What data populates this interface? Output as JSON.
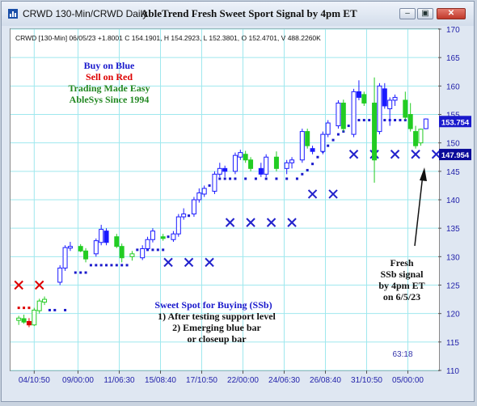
{
  "window": {
    "title": "CRWD 130-Min/CRWD Daily",
    "headline": "AbleTrend Fresh Sweet Sport Signal by 4pm ET",
    "controls": [
      "minimize",
      "restore",
      "close"
    ]
  },
  "colors": {
    "blue_bar": "#1a1aff",
    "green_bar": "#22cc22",
    "red_dot": "#dd0000",
    "support_dot": "#1a1acc",
    "support_x": "#2222cc",
    "grid": "#9fe8ee",
    "axis_text": "#2222aa",
    "label_bg": "#1a1acc"
  },
  "chart_data": {
    "type": "candlestick",
    "info_line": "CRWD [130-Min] 06/05/23 +1.8001 C 154.1901, H 154.2923, L 152.3801, O 152.4701, V 488.2260K",
    "ylim": [
      110,
      170
    ],
    "ytick_values": [
      110,
      115,
      120,
      125,
      130,
      135,
      140,
      145,
      150,
      155,
      160,
      165,
      170
    ],
    "x_tick_labels": [
      "04/10:50",
      "09/00:00",
      "11/06:30",
      "15/08:40",
      "17/10:50",
      "22/00:00",
      "24/06:30",
      "26/08:40",
      "31/10:50",
      "05/00:00"
    ],
    "x_tick_positions": [
      3,
      11.5,
      19.5,
      27.5,
      35.5,
      43.5,
      51.5,
      59.5,
      67.5,
      75.5
    ],
    "n_bars": 80,
    "price_labels": [
      {
        "text": "153.754",
        "value": 153.754,
        "style": "blue"
      },
      {
        "text": "147.954",
        "value": 147.954,
        "style": "blue-dark"
      }
    ],
    "bars": [
      {
        "i": 0,
        "o": 118.8,
        "h": 119.6,
        "l": 118.0,
        "c": 119.2,
        "color": "green"
      },
      {
        "i": 1,
        "o": 119.1,
        "h": 119.8,
        "l": 118.2,
        "c": 118.5,
        "color": "green"
      },
      {
        "i": 2,
        "o": 118.6,
        "h": 119.2,
        "l": 117.6,
        "c": 118.0,
        "color": "red"
      },
      {
        "i": 3,
        "o": 118.0,
        "h": 121.0,
        "l": 117.8,
        "c": 120.6,
        "color": "green"
      },
      {
        "i": 4,
        "o": 120.5,
        "h": 122.6,
        "l": 120.0,
        "c": 122.2,
        "color": "green"
      },
      {
        "i": 5,
        "o": 122.0,
        "h": 123.0,
        "l": 121.5,
        "c": 122.5,
        "color": "green"
      },
      {
        "i": 8,
        "o": 125.5,
        "h": 128.5,
        "l": 125.0,
        "c": 128.0,
        "color": "blue"
      },
      {
        "i": 9,
        "o": 128.0,
        "h": 132.0,
        "l": 127.5,
        "c": 131.6,
        "color": "blue"
      },
      {
        "i": 10,
        "o": 131.5,
        "h": 132.6,
        "l": 131.0,
        "c": 131.8,
        "color": "blue"
      },
      {
        "i": 12,
        "o": 131.8,
        "h": 132.2,
        "l": 130.8,
        "c": 131.0,
        "color": "green"
      },
      {
        "i": 13,
        "o": 131.0,
        "h": 131.5,
        "l": 129.0,
        "c": 129.6,
        "color": "green"
      },
      {
        "i": 15,
        "o": 130.5,
        "h": 133.2,
        "l": 130.0,
        "c": 132.8,
        "color": "blue"
      },
      {
        "i": 16,
        "o": 132.5,
        "h": 135.6,
        "l": 132.0,
        "c": 134.8,
        "color": "blue"
      },
      {
        "i": 17,
        "o": 134.5,
        "h": 135.0,
        "l": 132.0,
        "c": 132.5,
        "color": "blue"
      },
      {
        "i": 19,
        "o": 133.5,
        "h": 134.0,
        "l": 131.5,
        "c": 131.8,
        "color": "green"
      },
      {
        "i": 20,
        "o": 131.8,
        "h": 132.3,
        "l": 129.0,
        "c": 129.8,
        "color": "green"
      },
      {
        "i": 22,
        "o": 130.0,
        "h": 131.0,
        "l": 129.3,
        "c": 130.5,
        "color": "green"
      },
      {
        "i": 24,
        "o": 129.8,
        "h": 132.0,
        "l": 129.4,
        "c": 131.4,
        "color": "blue"
      },
      {
        "i": 25,
        "o": 131.4,
        "h": 133.5,
        "l": 131.0,
        "c": 133.0,
        "color": "blue"
      },
      {
        "i": 26,
        "o": 133.0,
        "h": 135.0,
        "l": 132.5,
        "c": 134.5,
        "color": "blue"
      },
      {
        "i": 28,
        "o": 133.5,
        "h": 134.0,
        "l": 132.8,
        "c": 133.2,
        "color": "green"
      },
      {
        "i": 30,
        "o": 133.0,
        "h": 134.5,
        "l": 132.6,
        "c": 134.0,
        "color": "blue"
      },
      {
        "i": 31,
        "o": 134.0,
        "h": 137.5,
        "l": 133.5,
        "c": 137.0,
        "color": "blue"
      },
      {
        "i": 32,
        "o": 137.0,
        "h": 138.5,
        "l": 136.5,
        "c": 137.5,
        "color": "blue"
      },
      {
        "i": 34,
        "o": 137.5,
        "h": 140.5,
        "l": 137.0,
        "c": 140.0,
        "color": "blue"
      },
      {
        "i": 35,
        "o": 140.0,
        "h": 142.0,
        "l": 139.5,
        "c": 141.2,
        "color": "blue"
      },
      {
        "i": 36,
        "o": 141.0,
        "h": 142.5,
        "l": 140.5,
        "c": 142.0,
        "color": "blue"
      },
      {
        "i": 38,
        "o": 141.5,
        "h": 145.0,
        "l": 141.0,
        "c": 144.5,
        "color": "blue"
      },
      {
        "i": 39,
        "o": 144.5,
        "h": 146.5,
        "l": 144.0,
        "c": 145.5,
        "color": "blue"
      },
      {
        "i": 40,
        "o": 145.5,
        "h": 146.0,
        "l": 144.0,
        "c": 145.0,
        "color": "blue"
      },
      {
        "i": 42,
        "o": 145.0,
        "h": 148.3,
        "l": 144.5,
        "c": 147.8,
        "color": "blue"
      },
      {
        "i": 43,
        "o": 147.5,
        "h": 148.8,
        "l": 147.0,
        "c": 148.3,
        "color": "blue"
      },
      {
        "i": 44,
        "o": 148.0,
        "h": 148.6,
        "l": 146.5,
        "c": 147.0,
        "color": "green"
      },
      {
        "i": 45,
        "o": 147.0,
        "h": 147.5,
        "l": 145.0,
        "c": 145.5,
        "color": "green"
      },
      {
        "i": 47,
        "o": 145.5,
        "h": 146.5,
        "l": 144.0,
        "c": 144.5,
        "color": "blue"
      },
      {
        "i": 48,
        "o": 144.5,
        "h": 148.0,
        "l": 144.0,
        "c": 147.5,
        "color": "blue"
      },
      {
        "i": 50,
        "o": 147.5,
        "h": 148.5,
        "l": 145.0,
        "c": 145.5,
        "color": "green"
      },
      {
        "i": 52,
        "o": 145.5,
        "h": 147.0,
        "l": 144.5,
        "c": 146.5,
        "color": "blue"
      },
      {
        "i": 53,
        "o": 146.5,
        "h": 147.5,
        "l": 145.5,
        "c": 147.0,
        "color": "blue"
      },
      {
        "i": 55,
        "o": 147.0,
        "h": 152.5,
        "l": 146.5,
        "c": 152.0,
        "color": "blue"
      },
      {
        "i": 56,
        "o": 152.0,
        "h": 152.5,
        "l": 149.0,
        "c": 149.5,
        "color": "green"
      },
      {
        "i": 57,
        "o": 149.0,
        "h": 149.5,
        "l": 148.0,
        "c": 148.5,
        "color": "blue"
      },
      {
        "i": 59,
        "o": 148.5,
        "h": 152.0,
        "l": 148.0,
        "c": 151.5,
        "color": "blue"
      },
      {
        "i": 60,
        "o": 151.5,
        "h": 154.0,
        "l": 151.0,
        "c": 153.5,
        "color": "blue"
      },
      {
        "i": 62,
        "o": 153.0,
        "h": 157.5,
        "l": 152.5,
        "c": 157.0,
        "color": "blue"
      },
      {
        "i": 63,
        "o": 157.0,
        "h": 157.6,
        "l": 152.0,
        "c": 152.5,
        "color": "green"
      },
      {
        "i": 65,
        "o": 151.5,
        "h": 159.5,
        "l": 151.0,
        "c": 159.0,
        "color": "blue"
      },
      {
        "i": 66,
        "o": 159.0,
        "h": 161.0,
        "l": 157.5,
        "c": 158.0,
        "color": "blue"
      },
      {
        "i": 67,
        "o": 158.5,
        "h": 159.0,
        "l": 156.5,
        "c": 157.0,
        "color": "green"
      },
      {
        "i": 69,
        "o": 157.0,
        "h": 161.5,
        "l": 143.0,
        "c": 147.0,
        "color": "green"
      },
      {
        "i": 70,
        "o": 152.0,
        "h": 160.5,
        "l": 151.5,
        "c": 160.0,
        "color": "blue"
      },
      {
        "i": 71,
        "o": 159.5,
        "h": 160.5,
        "l": 156.0,
        "c": 156.5,
        "color": "blue"
      },
      {
        "i": 72,
        "o": 156.0,
        "h": 158.0,
        "l": 153.0,
        "c": 157.5,
        "color": "blue"
      },
      {
        "i": 73,
        "o": 157.5,
        "h": 158.5,
        "l": 156.5,
        "c": 158.0,
        "color": "blue"
      },
      {
        "i": 75,
        "o": 157.5,
        "h": 159.0,
        "l": 154.0,
        "c": 154.5,
        "color": "green"
      },
      {
        "i": 76,
        "o": 155.0,
        "h": 157.0,
        "l": 152.0,
        "c": 152.5,
        "color": "green"
      },
      {
        "i": 77,
        "o": 152.0,
        "h": 153.0,
        "l": 149.0,
        "c": 149.5,
        "color": "green"
      },
      {
        "i": 78,
        "o": 150.0,
        "h": 152.5,
        "l": 149.5,
        "c": 152.4,
        "color": "green"
      },
      {
        "i": 79,
        "o": 152.5,
        "h": 154.3,
        "l": 152.4,
        "c": 154.2,
        "color": "blue"
      }
    ],
    "support_dots": [
      {
        "i": 0,
        "v": 121.0,
        "color": "red"
      },
      {
        "i": 1,
        "v": 121.0,
        "color": "red"
      },
      {
        "i": 2,
        "v": 121.0,
        "color": "red"
      },
      {
        "i": 6,
        "v": 120.6,
        "color": "blue"
      },
      {
        "i": 7,
        "v": 120.6,
        "color": "blue"
      },
      {
        "i": 9,
        "v": 120.6,
        "color": "blue"
      },
      {
        "i": 11,
        "v": 127.2,
        "color": "blue"
      },
      {
        "i": 12,
        "v": 127.2,
        "color": "blue"
      },
      {
        "i": 13,
        "v": 127.2,
        "color": "blue"
      },
      {
        "i": 14,
        "v": 128.5,
        "color": "blue"
      },
      {
        "i": 15,
        "v": 128.5,
        "color": "blue"
      },
      {
        "i": 16,
        "v": 128.5,
        "color": "blue"
      },
      {
        "i": 17,
        "v": 128.5,
        "color": "blue"
      },
      {
        "i": 18,
        "v": 128.5,
        "color": "blue"
      },
      {
        "i": 19,
        "v": 128.5,
        "color": "blue"
      },
      {
        "i": 20,
        "v": 128.5,
        "color": "blue"
      },
      {
        "i": 21,
        "v": 128.5,
        "color": "blue"
      },
      {
        "i": 23,
        "v": 131.2,
        "color": "blue"
      },
      {
        "i": 24,
        "v": 131.2,
        "color": "blue"
      },
      {
        "i": 25,
        "v": 131.2,
        "color": "blue"
      },
      {
        "i": 26,
        "v": 131.2,
        "color": "blue"
      },
      {
        "i": 27,
        "v": 131.2,
        "color": "blue"
      },
      {
        "i": 28,
        "v": 131.2,
        "color": "blue"
      },
      {
        "i": 29,
        "v": 133.5,
        "color": "blue"
      },
      {
        "i": 30,
        "v": 133.5,
        "color": "blue"
      },
      {
        "i": 31,
        "v": 134.5,
        "color": "blue"
      },
      {
        "i": 32,
        "v": 137.2,
        "color": "blue"
      },
      {
        "i": 33,
        "v": 137.2,
        "color": "blue"
      },
      {
        "i": 34,
        "v": 138.5,
        "color": "blue"
      },
      {
        "i": 35,
        "v": 140.2,
        "color": "blue"
      },
      {
        "i": 36,
        "v": 141.5,
        "color": "blue"
      },
      {
        "i": 37,
        "v": 142.5,
        "color": "blue"
      },
      {
        "i": 38,
        "v": 143.7,
        "color": "blue"
      },
      {
        "i": 39,
        "v": 143.7,
        "color": "blue"
      },
      {
        "i": 40,
        "v": 143.7,
        "color": "blue"
      },
      {
        "i": 41,
        "v": 143.7,
        "color": "blue"
      },
      {
        "i": 42,
        "v": 143.7,
        "color": "blue"
      },
      {
        "i": 44,
        "v": 143.7,
        "color": "blue"
      },
      {
        "i": 46,
        "v": 143.7,
        "color": "blue"
      },
      {
        "i": 48,
        "v": 143.7,
        "color": "blue"
      },
      {
        "i": 50,
        "v": 143.7,
        "color": "blue"
      },
      {
        "i": 52,
        "v": 143.7,
        "color": "blue"
      },
      {
        "i": 54,
        "v": 143.7,
        "color": "blue"
      },
      {
        "i": 55,
        "v": 144.5,
        "color": "blue"
      },
      {
        "i": 56,
        "v": 145.2,
        "color": "blue"
      },
      {
        "i": 57,
        "v": 146.3,
        "color": "blue"
      },
      {
        "i": 58,
        "v": 147.5,
        "color": "blue"
      },
      {
        "i": 59,
        "v": 148.5,
        "color": "blue"
      },
      {
        "i": 60,
        "v": 149.5,
        "color": "blue"
      },
      {
        "i": 61,
        "v": 150.5,
        "color": "blue"
      },
      {
        "i": 62,
        "v": 151.5,
        "color": "blue"
      },
      {
        "i": 63,
        "v": 152.0,
        "color": "blue"
      },
      {
        "i": 64,
        "v": 153.0,
        "color": "blue"
      },
      {
        "i": 65,
        "v": 153.5,
        "color": "blue"
      },
      {
        "i": 66,
        "v": 154.0,
        "color": "blue"
      },
      {
        "i": 67,
        "v": 154.0,
        "color": "blue"
      },
      {
        "i": 68,
        "v": 154.0,
        "color": "blue"
      },
      {
        "i": 69,
        "v": 154.0,
        "color": "blue"
      },
      {
        "i": 70,
        "v": 154.0,
        "color": "blue"
      },
      {
        "i": 71,
        "v": 154.0,
        "color": "blue"
      },
      {
        "i": 72,
        "v": 154.0,
        "color": "blue"
      },
      {
        "i": 73,
        "v": 154.0,
        "color": "blue"
      },
      {
        "i": 74,
        "v": 154.0,
        "color": "blue"
      },
      {
        "i": 75,
        "v": 154.0,
        "color": "blue"
      }
    ],
    "x_markers": [
      {
        "i": 0,
        "v": 125.0,
        "color": "red"
      },
      {
        "i": 4,
        "v": 125.0,
        "color": "red"
      },
      {
        "i": 29,
        "v": 129.0,
        "color": "blue"
      },
      {
        "i": 33,
        "v": 129.0,
        "color": "blue"
      },
      {
        "i": 37,
        "v": 129.0,
        "color": "blue"
      },
      {
        "i": 41,
        "v": 136.0,
        "color": "blue"
      },
      {
        "i": 45,
        "v": 136.0,
        "color": "blue"
      },
      {
        "i": 49,
        "v": 136.0,
        "color": "blue"
      },
      {
        "i": 53,
        "v": 136.0,
        "color": "blue"
      },
      {
        "i": 57,
        "v": 141.0,
        "color": "blue"
      },
      {
        "i": 61,
        "v": 141.0,
        "color": "blue"
      },
      {
        "i": 65,
        "v": 148.0,
        "color": "blue"
      },
      {
        "i": 69,
        "v": 148.0,
        "color": "blue"
      },
      {
        "i": 73,
        "v": 148.0,
        "color": "blue"
      },
      {
        "i": 77,
        "v": 148.0,
        "color": "blue"
      },
      {
        "i": 81,
        "v": 148.0,
        "color": "blue"
      }
    ],
    "legend_lines": [
      {
        "text": "Buy on Blue",
        "color": "#1a1acc"
      },
      {
        "text": "Sell on Red",
        "color": "#dd0000"
      },
      {
        "text": "Trading Made Easy",
        "color": "#228822"
      },
      {
        "text": "AbleSys Since 1994",
        "color": "#228822"
      }
    ],
    "sweet_spot_lines": [
      {
        "text": "Sweet Spot for Buying (SSb)",
        "color": "#1a1acc"
      },
      {
        "text": "1) After testing support level",
        "color": "#111111"
      },
      {
        "text": "2) Emerging blue bar",
        "color": "#111111"
      },
      {
        "text": "or closeup bar",
        "color": "#111111"
      }
    ],
    "fresh_lines": [
      "Fresh",
      "SSb signal",
      "by 4pm ET",
      "on 6/5/23"
    ],
    "timer": "63:18"
  }
}
